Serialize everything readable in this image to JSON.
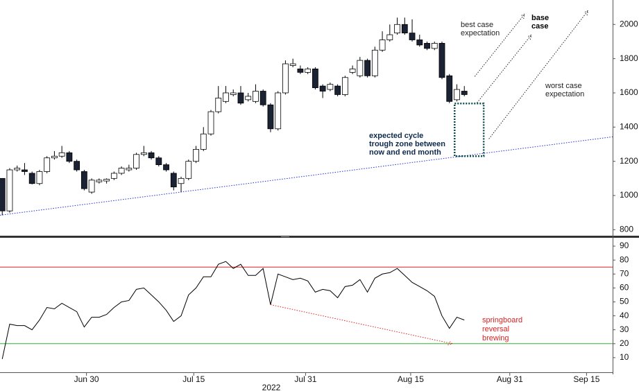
{
  "chart_data": [
    {
      "type": "candlestick",
      "up_color": "#ffffff",
      "down_color": "#1b2233",
      "outline_color": "#000000",
      "open": [
        1100,
        910,
        1150,
        1150,
        1130,
        1070,
        1140,
        1220,
        1230,
        1250,
        1200,
        1140,
        1020,
        1080,
        1085,
        1100,
        1130,
        1150,
        1160,
        1240,
        1250,
        1220,
        1180,
        1130,
        1070,
        1100,
        1200,
        1270,
        1360,
        1490,
        1550,
        1590,
        1600,
        1560,
        1550,
        1610,
        1530,
        1390,
        1600,
        1760,
        1740,
        1720,
        1740,
        1640,
        1620,
        1640,
        1590,
        1720,
        1700,
        1790,
        1700,
        1850,
        1910,
        1950,
        2000,
        1950,
        1910,
        1890,
        1860,
        1890,
        1700,
        1560,
        1610
      ],
      "high": [
        1100,
        1160,
        1175,
        1190,
        1140,
        1150,
        1230,
        1260,
        1290,
        1260,
        1210,
        1150,
        1100,
        1100,
        1100,
        1140,
        1170,
        1180,
        1250,
        1290,
        1260,
        1230,
        1190,
        1140,
        1110,
        1210,
        1290,
        1400,
        1500,
        1640,
        1640,
        1620,
        1640,
        1600,
        1650,
        1620,
        1540,
        1610,
        1790,
        1800,
        1760,
        1750,
        1750,
        1650,
        1660,
        1650,
        1700,
        1760,
        1810,
        1800,
        1870,
        1960,
        2000,
        2040,
        2040,
        2030,
        1940,
        1900,
        1900,
        1900,
        1710,
        1650,
        1640
      ],
      "low": [
        885,
        900,
        1140,
        1120,
        1065,
        1060,
        1130,
        1210,
        1220,
        1190,
        1140,
        1030,
        1010,
        1070,
        1070,
        1090,
        1120,
        1140,
        1150,
        1230,
        1210,
        1170,
        1140,
        1030,
        1020,
        1090,
        1190,
        1260,
        1350,
        1480,
        1540,
        1580,
        1530,
        1550,
        1540,
        1520,
        1370,
        1380,
        1590,
        1750,
        1710,
        1710,
        1620,
        1570,
        1610,
        1580,
        1580,
        1710,
        1690,
        1690,
        1690,
        1840,
        1900,
        1940,
        1940,
        1900,
        1870,
        1850,
        1850,
        1680,
        1540,
        1550,
        1580
      ],
      "close": [
        910,
        1150,
        1160,
        1140,
        1070,
        1140,
        1220,
        1230,
        1250,
        1200,
        1150,
        1040,
        1090,
        1090,
        1095,
        1130,
        1160,
        1160,
        1240,
        1250,
        1220,
        1180,
        1150,
        1050,
        1100,
        1200,
        1270,
        1360,
        1490,
        1570,
        1600,
        1600,
        1540,
        1580,
        1610,
        1530,
        1390,
        1600,
        1770,
        1770,
        1720,
        1740,
        1630,
        1610,
        1650,
        1590,
        1690,
        1740,
        1790,
        1700,
        1850,
        1910,
        1940,
        2000,
        1950,
        1910,
        1880,
        1860,
        1890,
        1690,
        1550,
        1620,
        1590
      ],
      "ylim": [
        765,
        2143
      ],
      "yticks": [
        800,
        1000,
        1200,
        1400,
        1600,
        1800,
        2000
      ],
      "xlim": [
        -0.3,
        81.9
      ],
      "trendline": {
        "color": "#1f2fd6",
        "x": [
          -0.3,
          81.9
        ],
        "y": [
          885,
          1343
        ]
      },
      "zone": {
        "color": "#0d4d4d",
        "x": [
          60.7,
          64.6
        ],
        "y": [
          1230,
          1538
        ]
      },
      "arrows": [
        {
          "x": [
            63.4,
            70.1
          ],
          "y": [
            1696,
            2061
          ]
        },
        {
          "x": [
            63.7,
            71.0
          ],
          "y": [
            1542,
            1939
          ]
        },
        {
          "x": [
            65.3,
            78.6
          ],
          "y": [
            1331,
            2081
          ]
        }
      ],
      "annotations": [
        {
          "text": [
            "best case",
            "expectation"
          ]
        },
        {
          "text": [
            "base",
            "case"
          ]
        },
        {
          "text": [
            "worst case",
            "expectation"
          ]
        },
        {
          "text": [
            "expected cycle",
            "trough zone between",
            "now and end month"
          ]
        }
      ]
    },
    {
      "type": "line",
      "color": "#000000",
      "values": [
        9,
        34,
        33,
        33,
        30,
        37,
        46,
        45,
        49,
        46,
        43,
        32,
        39,
        39,
        41,
        46,
        50,
        51,
        59,
        60,
        55,
        50,
        44,
        36,
        40,
        55,
        60,
        68,
        68,
        77,
        79,
        74,
        77,
        69,
        69,
        74,
        48,
        70,
        68,
        66,
        67,
        65,
        57,
        59,
        58,
        53,
        61,
        62,
        66,
        57,
        67,
        70,
        71,
        74,
        69,
        64,
        61,
        58,
        54,
        40,
        31,
        39,
        37
      ],
      "ylim": [
        0,
        95
      ],
      "yticks": [
        10,
        20,
        30,
        40,
        50,
        60,
        70,
        80,
        90
      ],
      "xlim": [
        -0.3,
        81.9
      ],
      "xticks": [
        {
          "value": 11.3,
          "label": "Jun 30"
        },
        {
          "value": 25.7,
          "label": "Jul 15"
        },
        {
          "value": 40.7,
          "label": "Jul 31"
        },
        {
          "value": 54.8,
          "label": "Aug 15"
        },
        {
          "value": 68.1,
          "label": "Aug 31"
        },
        {
          "value": 78.4,
          "label": "Sep 15"
        }
      ],
      "xlabel": "2022",
      "hlines": [
        {
          "value": 75,
          "color": "#e02020"
        },
        {
          "value": 20,
          "color": "#2db52d"
        }
      ],
      "divergence": {
        "color": "#e02020",
        "x": [
          36,
          60.4
        ],
        "y": [
          48,
          20
        ]
      },
      "annotation": {
        "color": "#e02020",
        "text": [
          "springboard",
          "reversal",
          "brewing"
        ]
      }
    }
  ]
}
